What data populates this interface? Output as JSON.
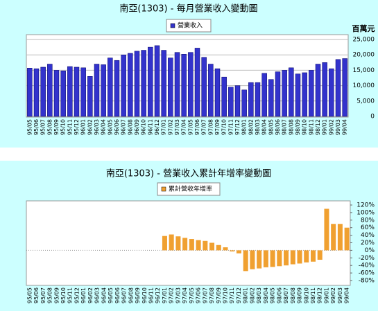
{
  "chart_data": [
    {
      "type": "bar",
      "title": "南亞(1303) - 每月營業收入變動圖",
      "ylabel": "百萬元",
      "categories": [
        "95/05",
        "95/06",
        "95/07",
        "95/08",
        "95/09",
        "95/10",
        "95/11",
        "95/12",
        "96/01",
        "96/02",
        "96/03",
        "96/04",
        "96/05",
        "96/06",
        "96/07",
        "96/08",
        "96/09",
        "96/10",
        "96/11",
        "96/12",
        "97/01",
        "97/02",
        "97/03",
        "97/04",
        "97/05",
        "97/06",
        "97/07",
        "97/08",
        "97/09",
        "97/10",
        "97/11",
        "97/12",
        "98/01",
        "98/02",
        "98/03",
        "98/04",
        "98/05",
        "98/06",
        "98/07",
        "98/08",
        "98/09",
        "98/10",
        "98/11",
        "98/12",
        "99/01",
        "99/02",
        "99/03",
        "99/04"
      ],
      "series": [
        {
          "name": "營業收入",
          "color": "#3333cc",
          "values": [
            15700,
            15500,
            16000,
            17000,
            15000,
            14800,
            16200,
            16000,
            15800,
            13000,
            17000,
            16800,
            19000,
            18200,
            20000,
            20500,
            21200,
            21500,
            22500,
            23000,
            21500,
            19000,
            20800,
            20200,
            20800,
            22200,
            19200,
            17000,
            15500,
            12800,
            9500,
            10000,
            8600,
            11000,
            11000,
            14000,
            12000,
            14500,
            15000,
            15800,
            13800,
            14200,
            15000,
            17000,
            17500,
            15500,
            18500,
            18800
          ]
        }
      ],
      "ylim": [
        0,
        25000
      ],
      "yticks": [
        0,
        {
          "value": 5000,
          "label": "5,000"
        },
        {
          "value": 10000,
          "label": "10,000"
        },
        {
          "value": 15000,
          "label": "15,000"
        },
        {
          "value": 20000,
          "label": "20,000"
        },
        {
          "value": 25000,
          "label": "25,000"
        }
      ],
      "grid": true
    },
    {
      "type": "bar",
      "title": "南亞(1303) -  營業收入累計年增率變動圖",
      "categories": [
        "95/05",
        "95/06",
        "95/07",
        "95/08",
        "95/09",
        "95/10",
        "95/11",
        "95/12",
        "96/01",
        "96/02",
        "96/03",
        "96/04",
        "96/05",
        "96/06",
        "96/07",
        "96/08",
        "96/09",
        "96/10",
        "96/11",
        "96/12",
        "97/01",
        "97/02",
        "97/03",
        "97/04",
        "97/05",
        "97/06",
        "97/07",
        "97/08",
        "97/09",
        "97/10",
        "97/11",
        "97/12",
        "98/01",
        "98/02",
        "98/03",
        "98/04",
        "98/05",
        "98/06",
        "98/07",
        "98/08",
        "98/09",
        "98/10",
        "98/11",
        "98/12",
        "99/01",
        "99/02",
        "99/03",
        "99/04"
      ],
      "series": [
        {
          "name": "累計營收年增率",
          "color": "#f0a030",
          "values": [
            0,
            0,
            0,
            0,
            0,
            0,
            0,
            0,
            0,
            0,
            0,
            0,
            0,
            0,
            0,
            0,
            0,
            0,
            0,
            0,
            38,
            42,
            37,
            33,
            30,
            27,
            25,
            20,
            14,
            8,
            -3,
            -8,
            -55,
            -50,
            -48,
            -45,
            -44,
            -42,
            -40,
            -37,
            -35,
            -32,
            -30,
            -25,
            110,
            70,
            70,
            60
          ]
        }
      ],
      "ylim": [
        -80,
        120
      ],
      "yticks": [
        {
          "value": -80,
          "label": "-80%"
        },
        {
          "value": -60,
          "label": "-60%"
        },
        {
          "value": -40,
          "label": "-40%"
        },
        {
          "value": -20,
          "label": "-20%"
        },
        {
          "value": 0,
          "label": "0%"
        },
        {
          "value": 20,
          "label": "20%"
        },
        {
          "value": 40,
          "label": "40%"
        },
        {
          "value": 60,
          "label": "60%"
        },
        {
          "value": 80,
          "label": "80%"
        },
        {
          "value": 100,
          "label": "100%"
        },
        {
          "value": 120,
          "label": "120%"
        }
      ],
      "grid": false
    }
  ]
}
